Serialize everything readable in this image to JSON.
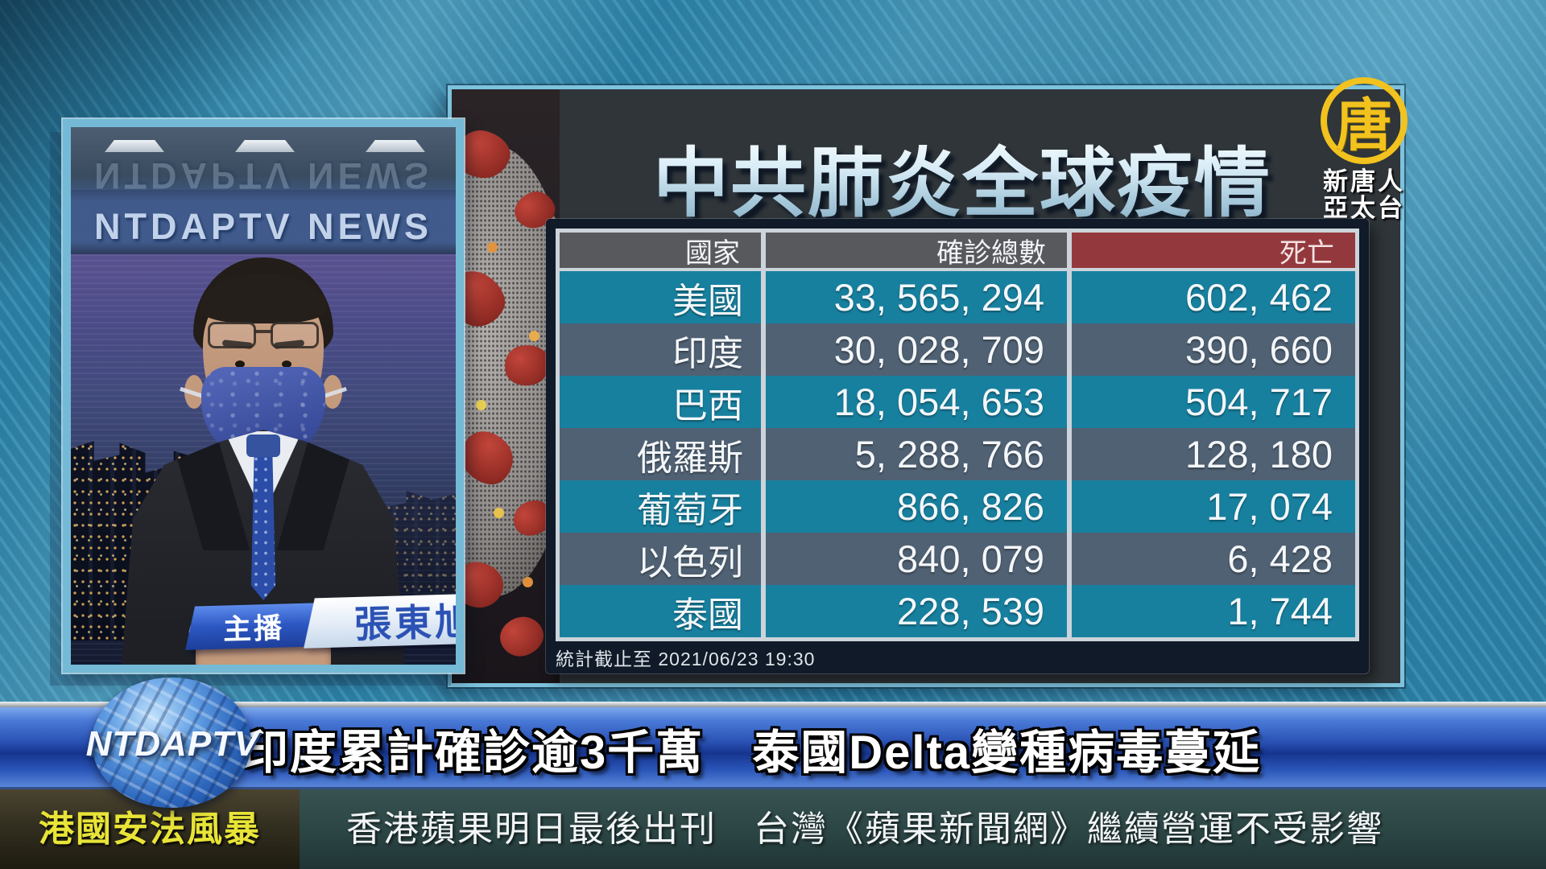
{
  "station": {
    "watermark": "NTDAPTV NEWS",
    "globe_label": "NTDAPTV",
    "logo_char": "唐",
    "logo_line1": "新唐人",
    "logo_line2": "亞太台"
  },
  "anchor_tag": {
    "role": "主播",
    "name": "張東旭"
  },
  "chart_data": {
    "type": "table",
    "title": "中共肺炎全球疫情",
    "columns": [
      "國家",
      "確診總數",
      "死亡"
    ],
    "rows": [
      {
        "country": "美國",
        "confirmed": 33565294,
        "deaths": 602462,
        "confirmed_display": "33, 565, 294",
        "deaths_display": "602, 462"
      },
      {
        "country": "印度",
        "confirmed": 30028709,
        "deaths": 390660,
        "confirmed_display": "30, 028, 709",
        "deaths_display": "390, 660"
      },
      {
        "country": "巴西",
        "confirmed": 18054653,
        "deaths": 504717,
        "confirmed_display": "18, 054, 653",
        "deaths_display": "504, 717"
      },
      {
        "country": "俄羅斯",
        "confirmed": 5288766,
        "deaths": 128180,
        "confirmed_display": "5, 288, 766",
        "deaths_display": "128, 180"
      },
      {
        "country": "葡萄牙",
        "confirmed": 866826,
        "deaths": 17074,
        "confirmed_display": "866, 826",
        "deaths_display": "17, 074"
      },
      {
        "country": "以色列",
        "confirmed": 840079,
        "deaths": 6428,
        "confirmed_display": "840, 079",
        "deaths_display": "6, 428"
      },
      {
        "country": "泰國",
        "confirmed": 228539,
        "deaths": 1744,
        "confirmed_display": "228, 539",
        "deaths_display": "1, 744"
      }
    ],
    "footnote": "統計截止至 2021/06/23 19:30"
  },
  "banner": {
    "headline": "印度累計確診逾3千萬　泰國Delta變種病毒蔓延"
  },
  "ticker": {
    "tag": "港國安法風暴",
    "text": "香港蘋果明日最後出刊　台灣《蘋果新聞網》繼續營運不受影響"
  },
  "colors": {
    "row_teal": "#17809F",
    "row_slate": "#506173",
    "header_gray": "#58595D",
    "header_red": "#93393D",
    "banner_blue": "#16348E",
    "ticker_yellow": "#E8E438",
    "logo_yellow": "#F2C21E"
  }
}
